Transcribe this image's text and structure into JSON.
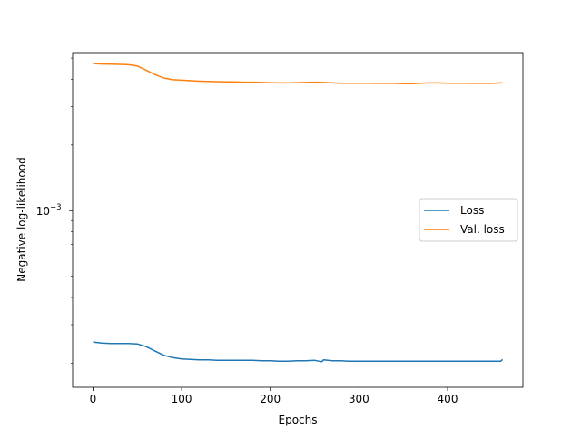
{
  "chart_data": {
    "type": "line",
    "xlabel": "Epochs",
    "ylabel": "Negative log-likelihood",
    "yscale": "log",
    "xlim": [
      -23,
      485
    ],
    "ylim": [
      0.000155,
      0.0053
    ],
    "xticks": [
      0,
      100,
      200,
      300,
      400
    ],
    "yticks": [
      {
        "value": 0.001,
        "base": "10",
        "exp": "−3"
      }
    ],
    "legend": {
      "placement": "center-right",
      "entries": [
        "Loss",
        "Val. loss"
      ]
    },
    "series": [
      {
        "name": "Loss",
        "color": "#1f77b4",
        "x": [
          0,
          10,
          20,
          30,
          40,
          50,
          60,
          70,
          80,
          90,
          100,
          110,
          120,
          130,
          140,
          150,
          160,
          170,
          180,
          190,
          200,
          210,
          220,
          230,
          240,
          250,
          258,
          260,
          270,
          280,
          290,
          300,
          310,
          320,
          330,
          340,
          350,
          360,
          370,
          380,
          390,
          400,
          410,
          420,
          430,
          440,
          450,
          460,
          462
        ],
        "y": [
          0.00025,
          0.000247,
          0.000246,
          0.000246,
          0.000246,
          0.000245,
          0.000238,
          0.000227,
          0.000217,
          0.000212,
          0.000209,
          0.000208,
          0.000207,
          0.000207,
          0.000206,
          0.000206,
          0.000206,
          0.000206,
          0.000206,
          0.000205,
          0.000205,
          0.000204,
          0.000204,
          0.000205,
          0.000205,
          0.000206,
          0.000203,
          0.000207,
          0.000205,
          0.000205,
          0.000204,
          0.000204,
          0.000204,
          0.000204,
          0.000204,
          0.000204,
          0.000204,
          0.000204,
          0.000204,
          0.000204,
          0.000204,
          0.000204,
          0.000204,
          0.000204,
          0.000204,
          0.000204,
          0.000204,
          0.000204,
          0.000208
        ]
      },
      {
        "name": "Val. loss",
        "color": "#ff7f0e",
        "x": [
          0,
          10,
          20,
          30,
          40,
          50,
          60,
          70,
          80,
          90,
          100,
          110,
          120,
          130,
          140,
          150,
          160,
          170,
          180,
          190,
          200,
          210,
          220,
          230,
          240,
          250,
          260,
          270,
          280,
          290,
          300,
          310,
          320,
          330,
          340,
          350,
          360,
          370,
          380,
          390,
          400,
          410,
          420,
          430,
          440,
          450,
          460,
          462
        ],
        "y": [
          0.00472,
          0.0047,
          0.00469,
          0.00468,
          0.00466,
          0.0046,
          0.0044,
          0.0042,
          0.00405,
          0.00398,
          0.00396,
          0.00394,
          0.00392,
          0.00391,
          0.0039,
          0.00389,
          0.00389,
          0.00388,
          0.00388,
          0.00387,
          0.00386,
          0.00385,
          0.00385,
          0.00386,
          0.00387,
          0.00388,
          0.00387,
          0.00385,
          0.00384,
          0.00384,
          0.00384,
          0.00384,
          0.00383,
          0.00383,
          0.00383,
          0.00382,
          0.00382,
          0.00384,
          0.00385,
          0.00385,
          0.00384,
          0.00384,
          0.00384,
          0.00383,
          0.00383,
          0.00383,
          0.00385,
          0.00385
        ]
      }
    ]
  }
}
